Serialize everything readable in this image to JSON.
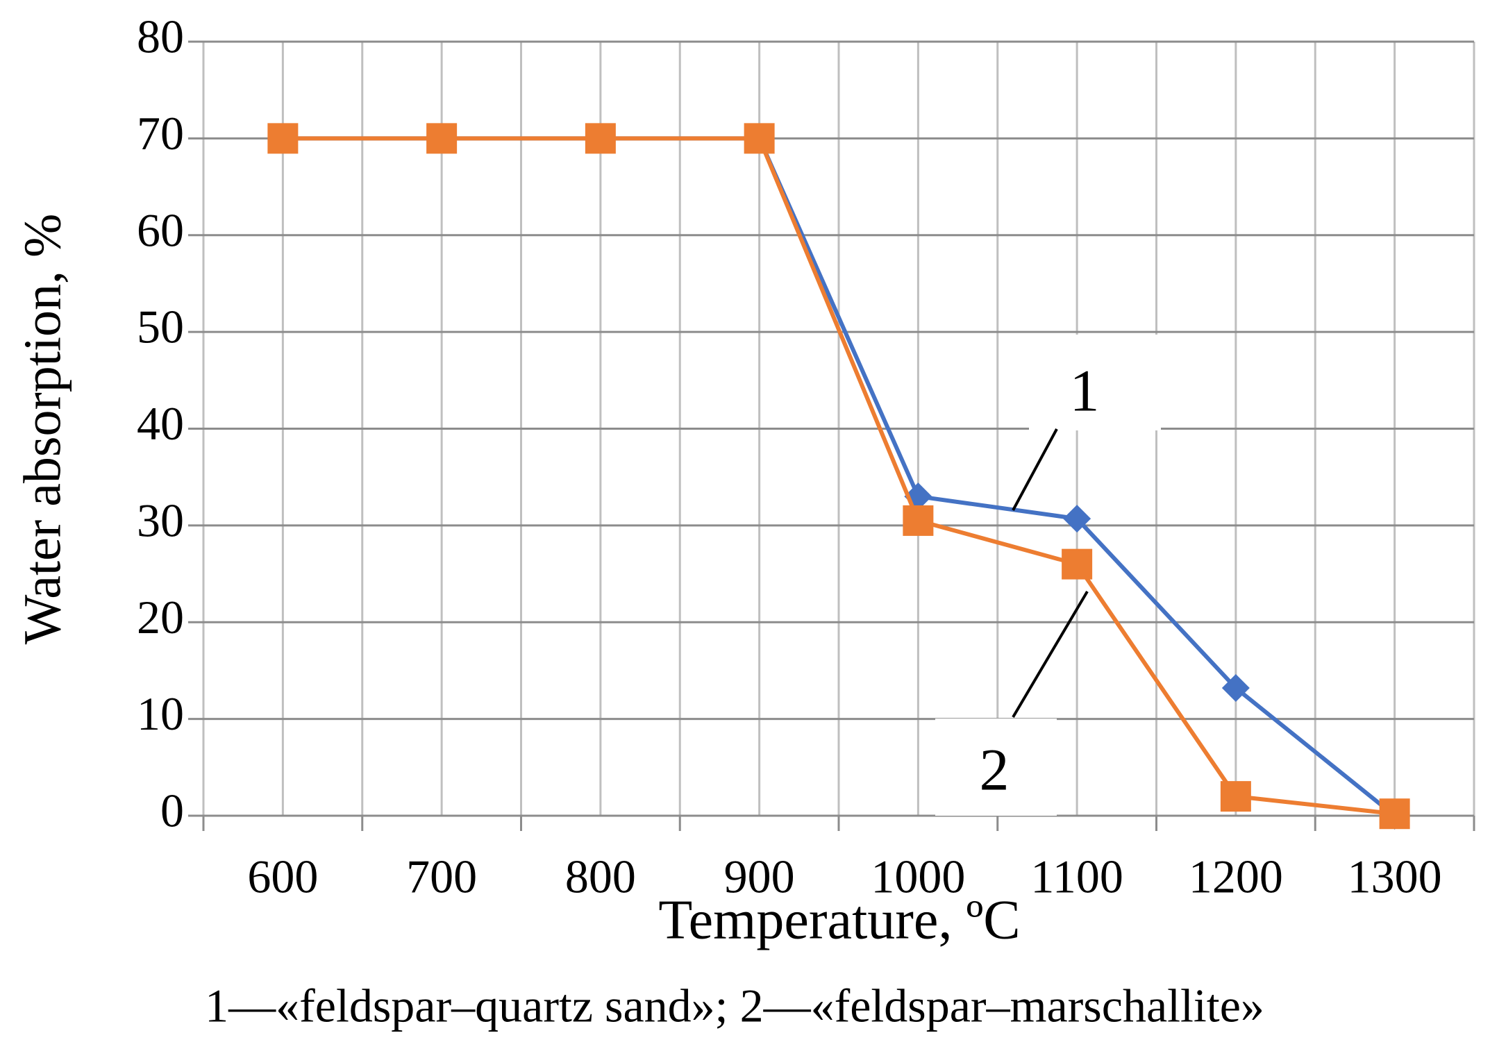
{
  "chart_data": {
    "type": "line",
    "y_label": "Water absorption, %",
    "x_label": "Temperature, ºC",
    "caption": "1—«feldspar–quartz sand»; 2—«feldspar–marschallite»",
    "categories": [
      "600",
      "700",
      "800",
      "900",
      "1000",
      "1100",
      "1200",
      "1300"
    ],
    "series": [
      {
        "name": "1",
        "color": "#4472c4",
        "marker": "diamond",
        "values": [
          70,
          70,
          70,
          70,
          33,
          30.7,
          13.2,
          0
        ]
      },
      {
        "name": "2",
        "color": "#ed7d31",
        "marker": "square",
        "values": [
          70,
          70,
          70,
          70,
          30.5,
          26,
          2,
          0.2
        ]
      }
    ],
    "ylim": [
      0,
      80
    ],
    "yticks": [
      0,
      10,
      20,
      30,
      40,
      50,
      60,
      70,
      80
    ],
    "grid": true
  }
}
